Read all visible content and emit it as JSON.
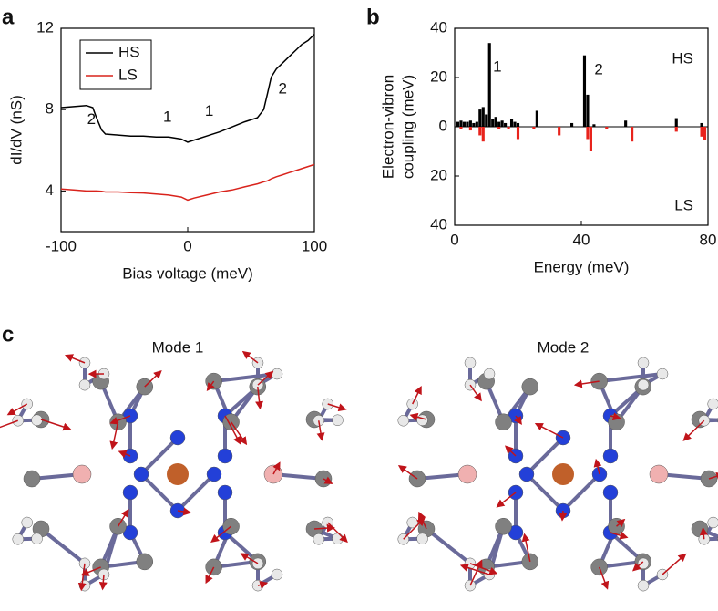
{
  "chart_data": [
    {
      "type": "line",
      "panel_label": "a",
      "xlabel": "Bias voltage (meV)",
      "ylabel": "dI/dV (nS)",
      "xlim": [
        -100,
        100
      ],
      "xticks": [
        -100,
        0,
        100
      ],
      "ylim": [
        2,
        12
      ],
      "yticks": [
        4,
        8,
        12
      ],
      "legend": "upper left",
      "x": [
        -100,
        -90,
        -80,
        -75,
        -72,
        -68,
        -65,
        -55,
        -45,
        -35,
        -25,
        -15,
        -5,
        0,
        5,
        15,
        25,
        35,
        45,
        55,
        60,
        63,
        66,
        70,
        75,
        80,
        85,
        90,
        95,
        100
      ],
      "series": [
        {
          "name": "HS",
          "color": "#000000",
          "values": [
            8.1,
            8.15,
            8.2,
            8.1,
            7.6,
            7.0,
            6.8,
            6.75,
            6.7,
            6.7,
            6.65,
            6.65,
            6.55,
            6.4,
            6.5,
            6.7,
            6.9,
            7.15,
            7.4,
            7.6,
            8.0,
            8.8,
            9.6,
            10.0,
            10.3,
            10.6,
            10.9,
            11.2,
            11.4,
            11.7
          ]
        },
        {
          "name": "LS",
          "color": "#d9231c",
          "values": [
            4.1,
            4.05,
            4.0,
            4.0,
            4.0,
            3.98,
            3.95,
            3.95,
            3.92,
            3.9,
            3.85,
            3.8,
            3.7,
            3.55,
            3.65,
            3.8,
            3.95,
            4.05,
            4.2,
            4.35,
            4.45,
            4.5,
            4.6,
            4.7,
            4.8,
            4.9,
            5.0,
            5.1,
            5.2,
            5.3
          ]
        }
      ],
      "annotations": [
        {
          "text": "2",
          "x": -76,
          "y": 7.5
        },
        {
          "text": "1",
          "x": -16,
          "y": 7.6
        },
        {
          "text": "1",
          "x": 17,
          "y": 7.9
        },
        {
          "text": "2",
          "x": 75,
          "y": 9.0
        }
      ]
    },
    {
      "type": "bar",
      "panel_label": "b",
      "xlabel": "Energy (meV)",
      "ylabel": [
        "Electron-vibron",
        "coupling (meV)"
      ],
      "xlim": [
        0,
        80
      ],
      "xticks": [
        0,
        40,
        80
      ],
      "ylim": [
        -40,
        40
      ],
      "yticks": [
        {
          "value": -40,
          "label": "40"
        },
        {
          "value": -20,
          "label": "20"
        },
        0,
        20,
        40
      ],
      "series": [
        {
          "name": "HS",
          "color": "#000000",
          "x": [
            1,
            2,
            3,
            4,
            5,
            6,
            7,
            8,
            9,
            10,
            11,
            12,
            13,
            14,
            15,
            16,
            18,
            19,
            20,
            26,
            37,
            41,
            42,
            44,
            54,
            70,
            78
          ],
          "values": [
            2,
            2.5,
            2,
            2,
            2.5,
            1.5,
            2,
            7,
            8,
            5,
            34,
            3,
            4,
            2,
            2.5,
            1.5,
            3,
            2,
            1.5,
            6.5,
            1.5,
            29,
            13,
            1,
            2.5,
            3.5,
            1.5
          ]
        },
        {
          "name": "LS",
          "color": "#e8231c",
          "x": [
            2,
            5,
            8,
            9,
            14,
            17,
            20,
            25,
            33,
            42,
            43,
            48,
            56,
            70,
            78,
            79
          ],
          "values": [
            -1,
            -1.5,
            -3.5,
            -6,
            -1,
            -1,
            -5,
            -1,
            -3.5,
            -5,
            -10,
            -1,
            -6,
            -2,
            -4,
            -5.5
          ]
        }
      ],
      "annotations": [
        {
          "text": "1",
          "x": 13.5,
          "y": 24
        },
        {
          "text": "2",
          "x": 45.5,
          "y": 23
        }
      ]
    }
  ],
  "molecules": {
    "panel_label": "c",
    "titles": [
      "Mode 1",
      "Mode 2"
    ]
  }
}
